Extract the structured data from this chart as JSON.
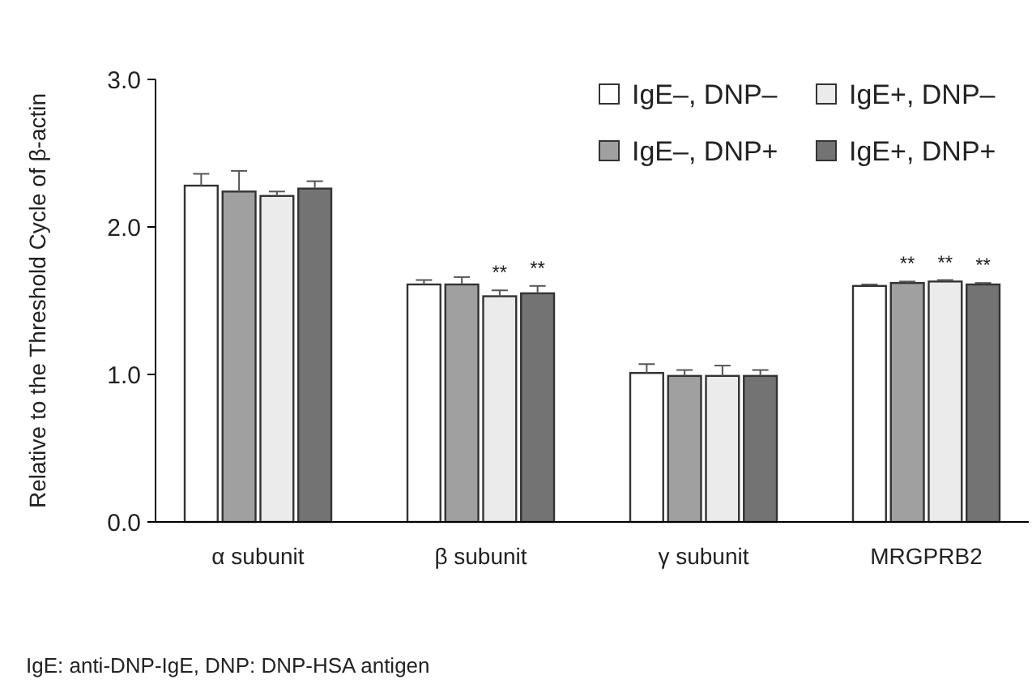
{
  "chart_data": {
    "type": "bar",
    "ylabel": "Relative to the Threshold Cycle of β-actin",
    "categories": [
      "α subunit",
      "β subunit",
      "γ subunit",
      "MRGPRB2"
    ],
    "series": [
      {
        "name": "IgE–, DNP–",
        "color": "#ffffff",
        "values": [
          2.28,
          1.61,
          1.01,
          1.6
        ],
        "errors": [
          0.08,
          0.03,
          0.06,
          0.01
        ],
        "value_labels": [
          null,
          null,
          null,
          null
        ]
      },
      {
        "name": "IgE–, DNP+",
        "color": "#a0a0a0",
        "values": [
          2.24,
          1.61,
          0.99,
          1.62
        ],
        "errors": [
          0.14,
          0.05,
          0.04,
          0.01
        ],
        "value_labels": [
          null,
          null,
          null,
          "**"
        ]
      },
      {
        "name": "IgE+, DNP–",
        "color": "#ebebeb",
        "values": [
          2.21,
          1.53,
          0.99,
          1.63
        ],
        "errors": [
          0.03,
          0.04,
          0.07,
          0.01
        ],
        "value_labels": [
          null,
          "**",
          null,
          "**"
        ]
      },
      {
        "name": "IgE+, DNP+",
        "color": "#737373",
        "values": [
          2.26,
          1.55,
          0.99,
          1.61
        ],
        "errors": [
          0.05,
          0.05,
          0.04,
          0.01
        ],
        "value_labels": [
          null,
          "**",
          null,
          "**"
        ]
      }
    ],
    "ylim": [
      0,
      3
    ],
    "yticks": [
      {
        "value": 0,
        "label": "0.0"
      },
      {
        "value": 1,
        "label": "1.0"
      },
      {
        "value": 2,
        "label": "2.0"
      },
      {
        "value": 3,
        "label": "3.0"
      }
    ],
    "legend": "top right",
    "annotations": [
      "IgE: anti-DNP-IgE, DNP: DNP-HSA antigen"
    ]
  }
}
